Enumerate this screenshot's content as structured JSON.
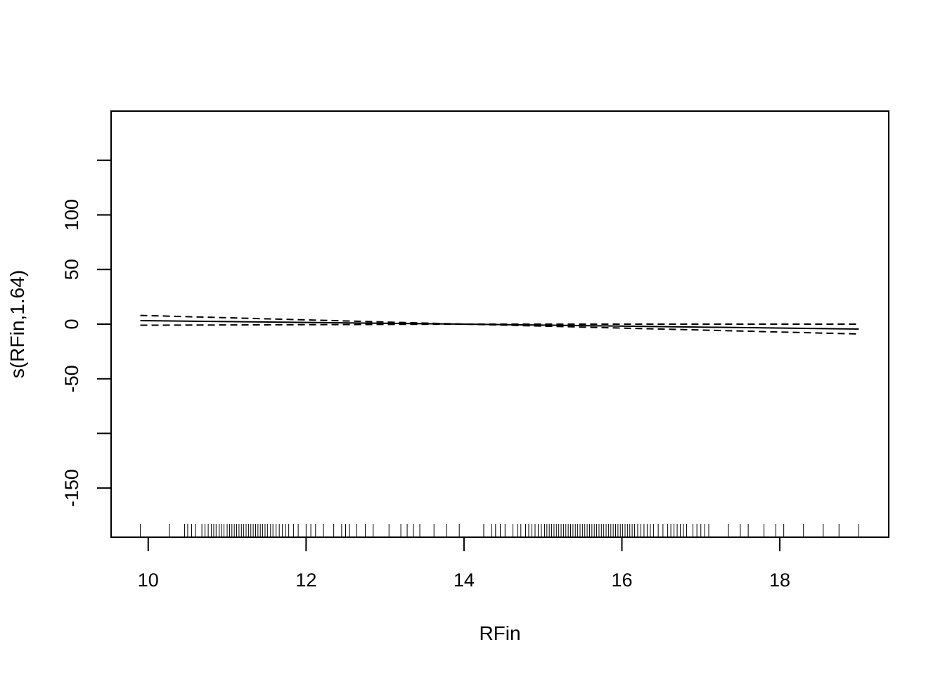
{
  "chart_data": {
    "type": "line",
    "title": "",
    "xlabel": "RFin",
    "ylabel": "s(RFin,1.64)",
    "xlim": [
      9.53,
      19.38
    ],
    "ylim": [
      -195,
      195
    ],
    "x_ticks": [
      10,
      12,
      14,
      16,
      18
    ],
    "x_tick_labels": [
      "10",
      "12",
      "14",
      "16",
      "18"
    ],
    "y_ticks": [
      -150,
      -100,
      -50,
      0,
      50,
      100,
      150
    ],
    "y_tick_labels": [
      "-150",
      "",
      "-50",
      "0",
      "50",
      "100",
      ""
    ],
    "grid": false,
    "legend": "none",
    "series": [
      {
        "style": "solid",
        "x": [
          9.9,
          14.0,
          19.0
        ],
        "y": [
          3.2,
          0.0,
          -4.5
        ]
      },
      {
        "style": "dashed",
        "x": [
          9.9,
          14.0,
          19.0
        ],
        "y": [
          8.0,
          0.0,
          0.0
        ]
      },
      {
        "style": "dashed",
        "x": [
          9.9,
          14.0,
          19.0
        ],
        "y": [
          -1.0,
          0.0,
          -9.0
        ]
      }
    ],
    "rug": [
      9.9,
      10.27,
      10.46,
      10.5,
      10.55,
      10.6,
      10.68,
      10.72,
      10.76,
      10.8,
      10.83,
      10.86,
      10.9,
      10.93,
      10.96,
      11.0,
      11.03,
      11.06,
      11.09,
      11.12,
      11.15,
      11.18,
      11.21,
      11.24,
      11.27,
      11.3,
      11.33,
      11.36,
      11.39,
      11.42,
      11.45,
      11.48,
      11.51,
      11.55,
      11.58,
      11.62,
      11.66,
      11.7,
      11.74,
      11.78,
      11.84,
      11.9,
      12.0,
      12.06,
      12.12,
      12.22,
      12.35,
      12.45,
      12.5,
      12.55,
      12.64,
      12.75,
      12.85,
      13.05,
      13.2,
      13.28,
      13.36,
      13.44,
      13.62,
      13.78,
      13.94,
      14.25,
      14.35,
      14.4,
      14.46,
      14.52,
      14.62,
      14.68,
      14.72,
      14.78,
      14.82,
      14.86,
      14.9,
      14.94,
      14.98,
      15.02,
      15.05,
      15.08,
      15.11,
      15.14,
      15.17,
      15.2,
      15.23,
      15.26,
      15.29,
      15.32,
      15.35,
      15.38,
      15.41,
      15.44,
      15.47,
      15.5,
      15.53,
      15.56,
      15.59,
      15.62,
      15.65,
      15.68,
      15.71,
      15.74,
      15.77,
      15.8,
      15.83,
      15.86,
      15.89,
      15.92,
      15.95,
      15.98,
      16.01,
      16.04,
      16.07,
      16.1,
      16.13,
      16.16,
      16.2,
      16.24,
      16.28,
      16.32,
      16.36,
      16.4,
      16.46,
      16.52,
      16.58,
      16.62,
      16.66,
      16.7,
      16.74,
      16.78,
      16.82,
      16.9,
      16.95,
      17.0,
      17.05,
      17.1,
      17.35,
      17.5,
      17.6,
      17.8,
      17.95,
      18.05,
      18.3,
      18.55,
      18.75,
      19.0
    ]
  }
}
